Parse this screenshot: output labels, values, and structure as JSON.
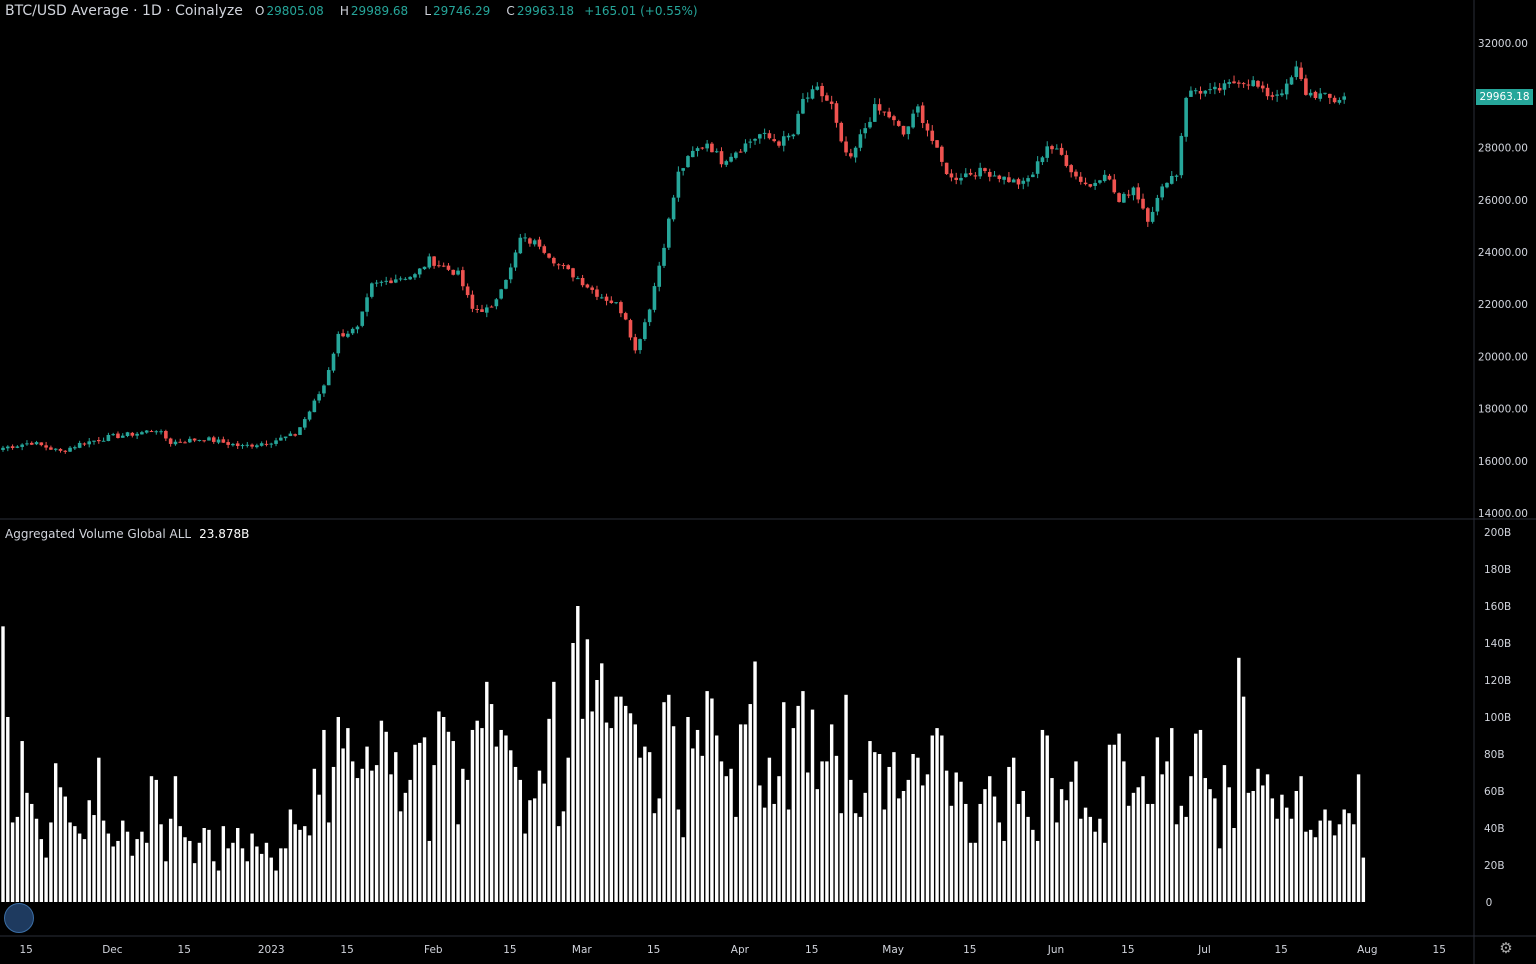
{
  "header": {
    "symbol": "BTC/USD Average · 1D · Coinalyze",
    "ohlc": [
      {
        "k": "O",
        "v": "29805.08"
      },
      {
        "k": "H",
        "v": "29989.68"
      },
      {
        "k": "L",
        "v": "29746.29"
      },
      {
        "k": "C",
        "v": "29963.18"
      }
    ],
    "change": "+165.01 (+0.55%)"
  },
  "volume_legend": {
    "title": "Aggregated Volume Global ALL",
    "value": "23.878B"
  },
  "last_price_label": "29963.18",
  "colors": {
    "up": "#26a69a",
    "down": "#ef5350",
    "volume": "#ffffff",
    "background": "#000000",
    "badge": "#26a69a"
  },
  "icons": {
    "logo": "coinalyze-logo-icon",
    "settings": "gear-icon"
  },
  "chart_data": [
    {
      "type": "candlestick",
      "title": "BTC/USD Average · 1D · Coinalyze",
      "ylim": [
        14000,
        32000
      ],
      "y_ticks": [
        "14000.00",
        "16000.00",
        "18000.00",
        "20000.00",
        "22000.00",
        "24000.00",
        "26000.00",
        "28000.00",
        "32000.00"
      ],
      "x_ticks": [
        "15",
        "Dec",
        "15",
        "2023",
        "15",
        "Feb",
        "15",
        "Mar",
        "15",
        "Apr",
        "15",
        "May",
        "15",
        "Jun",
        "15",
        "Jul",
        "15",
        "Aug",
        "15"
      ],
      "anchors": [
        [
          0,
          16500
        ],
        [
          6,
          16700
        ],
        [
          12,
          16350
        ],
        [
          16,
          16650
        ],
        [
          22,
          16900
        ],
        [
          28,
          17050
        ],
        [
          32,
          17200
        ],
        [
          35,
          16700
        ],
        [
          42,
          16850
        ],
        [
          50,
          16550
        ],
        [
          56,
          16750
        ],
        [
          61,
          17000
        ],
        [
          64,
          17900
        ],
        [
          67,
          18900
        ],
        [
          70,
          20800
        ],
        [
          74,
          21050
        ],
        [
          77,
          22700
        ],
        [
          82,
          23000
        ],
        [
          86,
          23100
        ],
        [
          89,
          23700
        ],
        [
          95,
          23150
        ],
        [
          98,
          21800
        ],
        [
          102,
          21800
        ],
        [
          104,
          22700
        ],
        [
          106,
          23350
        ],
        [
          108,
          24500
        ],
        [
          112,
          24300
        ],
        [
          116,
          23500
        ],
        [
          120,
          23000
        ],
        [
          124,
          22400
        ],
        [
          128,
          22000
        ],
        [
          130,
          21500
        ],
        [
          132,
          20200
        ],
        [
          135,
          21900
        ],
        [
          138,
          24300
        ],
        [
          141,
          27000
        ],
        [
          144,
          27800
        ],
        [
          147,
          28200
        ],
        [
          150,
          27500
        ],
        [
          154,
          28000
        ],
        [
          158,
          28500
        ],
        [
          162,
          28200
        ],
        [
          165,
          28500
        ],
        [
          167,
          29800
        ],
        [
          170,
          30200
        ],
        [
          173,
          29600
        ],
        [
          175,
          28100
        ],
        [
          177,
          27500
        ],
        [
          179,
          28400
        ],
        [
          182,
          29500
        ],
        [
          185,
          29200
        ],
        [
          188,
          28500
        ],
        [
          191,
          29500
        ],
        [
          193,
          28700
        ],
        [
          196,
          27400
        ],
        [
          198,
          26800
        ],
        [
          201,
          27000
        ],
        [
          205,
          27100
        ],
        [
          208,
          26900
        ],
        [
          211,
          26700
        ],
        [
          213,
          26600
        ],
        [
          215,
          27000
        ],
        [
          218,
          28100
        ],
        [
          221,
          27700
        ],
        [
          224,
          26900
        ],
        [
          227,
          26500
        ],
        [
          230,
          27100
        ],
        [
          233,
          25900
        ],
        [
          236,
          26500
        ],
        [
          239,
          25300
        ],
        [
          241,
          26000
        ],
        [
          243,
          26800
        ],
        [
          245,
          27000
        ],
        [
          247,
          30000
        ],
        [
          249,
          30200
        ],
        [
          252,
          30100
        ],
        [
          255,
          30300
        ],
        [
          258,
          30600
        ],
        [
          261,
          30500
        ],
        [
          263,
          30100
        ],
        [
          265,
          30000
        ],
        [
          268,
          30300
        ],
        [
          270,
          31000
        ],
        [
          272,
          30100
        ],
        [
          275,
          30000
        ],
        [
          278,
          29800
        ],
        [
          280,
          29963
        ]
      ]
    },
    {
      "type": "bar",
      "title": "Aggregated Volume Global ALL",
      "unit": "B",
      "ylim": [
        0,
        200
      ],
      "y_ticks": [
        "0",
        "20B",
        "40B",
        "60B",
        "80B",
        "100B",
        "120B",
        "140B",
        "160B",
        "180B",
        "200B"
      ],
      "values": [
        149,
        100,
        43,
        46,
        87,
        59,
        53,
        45,
        34,
        24,
        43,
        75,
        62,
        57,
        43,
        41,
        37,
        34,
        55,
        47,
        78,
        44,
        37,
        30,
        33,
        44,
        38,
        25,
        34,
        38,
        32,
        68,
        66,
        42,
        22,
        45,
        68,
        41,
        35,
        33,
        21,
        32,
        40,
        39,
        22,
        17,
        41,
        29,
        32,
        40,
        29,
        22,
        37,
        30,
        26,
        32,
        24,
        17,
        29,
        29,
        50,
        42,
        39,
        41,
        36,
        72,
        58,
        93,
        43,
        73,
        100,
        83,
        94,
        76,
        67,
        72,
        84,
        71,
        74,
        98,
        92,
        69,
        81,
        49,
        59,
        66,
        85,
        86,
        89,
        33,
        74,
        103,
        100,
        92,
        87,
        42,
        72,
        66,
        93,
        98,
        94,
        119,
        107,
        84,
        93,
        90,
        82,
        73,
        66,
        37,
        55,
        56,
        71,
        64,
        99,
        119,
        41,
        49,
        78,
        140,
        160,
        99,
        142,
        103,
        120,
        129,
        97,
        94,
        111,
        111,
        106,
        102,
        96,
        78,
        84,
        81,
        48,
        56,
        108,
        112,
        95,
        50,
        35,
        100,
        83,
        93,
        79,
        114,
        110,
        90,
        76,
        68,
        72,
        46,
        96,
        96,
        107,
        130,
        63,
        51,
        78,
        53,
        68,
        108,
        50,
        94,
        106,
        114,
        70,
        104,
        61,
        76,
        76,
        96,
        79,
        48,
        112,
        66,
        48,
        46,
        59,
        87,
        81,
        80,
        50,
        73,
        81,
        56,
        60,
        66,
        80,
        78,
        63,
        69,
        90,
        94,
        90,
        71,
        52,
        70,
        65,
        53,
        32,
        32,
        53,
        61,
        68,
        57,
        43,
        33,
        73,
        78,
        53,
        60,
        46,
        39,
        33,
        93,
        90,
        67,
        43,
        61,
        55,
        65,
        76,
        45,
        51,
        46,
        38,
        45,
        32,
        85,
        85,
        91,
        76,
        52,
        59,
        62,
        68,
        53,
        53,
        89,
        69,
        76,
        94,
        42,
        52,
        46,
        68,
        91,
        93,
        67,
        61,
        56,
        29,
        74,
        62,
        40,
        132,
        111,
        59,
        60,
        72,
        63,
        69,
        56,
        45,
        58,
        51,
        45,
        60,
        68,
        38,
        39,
        35,
        44,
        50,
        44,
        36,
        42,
        50,
        48,
        42,
        69,
        24
      ]
    }
  ]
}
